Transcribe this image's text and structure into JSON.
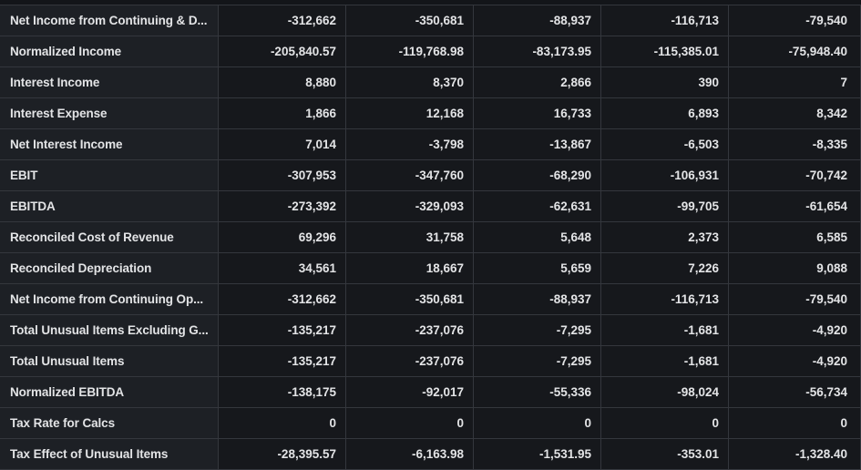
{
  "rows": [
    {
      "label": "Net Income from Continuing & D...",
      "values": [
        "-312,662",
        "-350,681",
        "-88,937",
        "-116,713",
        "-79,540"
      ]
    },
    {
      "label": "Normalized Income",
      "values": [
        "-205,840.57",
        "-119,768.98",
        "-83,173.95",
        "-115,385.01",
        "-75,948.40"
      ]
    },
    {
      "label": "Interest Income",
      "values": [
        "8,880",
        "8,370",
        "2,866",
        "390",
        "7"
      ]
    },
    {
      "label": "Interest Expense",
      "values": [
        "1,866",
        "12,168",
        "16,733",
        "6,893",
        "8,342"
      ]
    },
    {
      "label": "Net Interest Income",
      "values": [
        "7,014",
        "-3,798",
        "-13,867",
        "-6,503",
        "-8,335"
      ]
    },
    {
      "label": "EBIT",
      "values": [
        "-307,953",
        "-347,760",
        "-68,290",
        "-106,931",
        "-70,742"
      ]
    },
    {
      "label": "EBITDA",
      "values": [
        "-273,392",
        "-329,093",
        "-62,631",
        "-99,705",
        "-61,654"
      ]
    },
    {
      "label": "Reconciled Cost of Revenue",
      "values": [
        "69,296",
        "31,758",
        "5,648",
        "2,373",
        "6,585"
      ]
    },
    {
      "label": "Reconciled Depreciation",
      "values": [
        "34,561",
        "18,667",
        "5,659",
        "7,226",
        "9,088"
      ]
    },
    {
      "label": "Net Income from Continuing Op...",
      "values": [
        "-312,662",
        "-350,681",
        "-88,937",
        "-116,713",
        "-79,540"
      ]
    },
    {
      "label": "Total Unusual Items Excluding G...",
      "values": [
        "-135,217",
        "-237,076",
        "-7,295",
        "-1,681",
        "-4,920"
      ]
    },
    {
      "label": "Total Unusual Items",
      "values": [
        "-135,217",
        "-237,076",
        "-7,295",
        "-1,681",
        "-4,920"
      ]
    },
    {
      "label": "Normalized EBITDA",
      "values": [
        "-138,175",
        "-92,017",
        "-55,336",
        "-98,024",
        "-56,734"
      ]
    },
    {
      "label": "Tax Rate for Calcs",
      "values": [
        "0",
        "0",
        "0",
        "0",
        "0"
      ]
    },
    {
      "label": "Tax Effect of Unusual Items",
      "values": [
        "-28,395.57",
        "-6,163.98",
        "-1,531.95",
        "-353.01",
        "-1,328.40"
      ]
    }
  ]
}
